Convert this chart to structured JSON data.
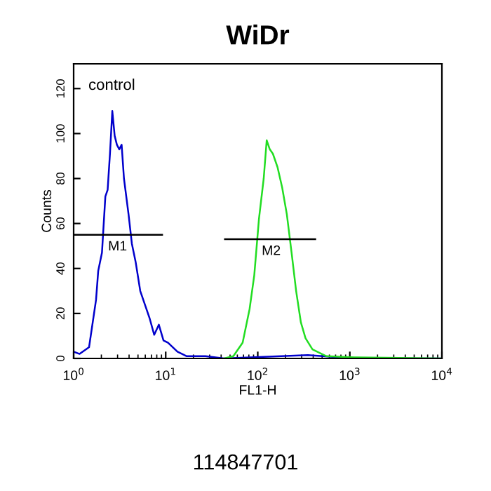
{
  "chart_data": {
    "type": "line",
    "title": "WiDr",
    "xlabel": "FL1-H",
    "ylabel": "Counts",
    "log": "x",
    "xlim": [
      1,
      10000
    ],
    "ylim": [
      0,
      131
    ],
    "xticks": [
      {
        "value": 1,
        "label": "10$^{0}$"
      },
      {
        "value": 10,
        "label": "10$^{1}$"
      },
      {
        "value": 100,
        "label": "10$^{2}$"
      },
      {
        "value": 1000,
        "label": "10$^{3}$"
      },
      {
        "value": 10000,
        "label": "10$^{4}$"
      }
    ],
    "yticks": [
      0,
      20,
      40,
      60,
      80,
      100,
      120
    ],
    "grid": false,
    "series": [
      {
        "color": "#0000cc",
        "x": [
          1,
          1.16,
          1.47,
          1.75,
          1.85,
          2.03,
          2.21,
          2.34,
          2.48,
          2.63,
          2.79,
          2.95,
          3.13,
          3.32,
          3.52,
          3.95,
          4.29,
          4.71,
          5.29,
          5.94,
          6.67,
          7.5,
          8.42,
          9.46,
          10.6,
          13.4,
          16.9,
          27,
          43,
          350,
          1120,
          10000
        ],
        "values": [
          3,
          2,
          5,
          26,
          39,
          47,
          72,
          75,
          91,
          110,
          99,
          95,
          93,
          95,
          80,
          64,
          51,
          43,
          30,
          24,
          18,
          10.5,
          15,
          8,
          7,
          3,
          1,
          1,
          0,
          1.5,
          0,
          0
        ]
      },
      {
        "color": "#22dd22",
        "x": [
          43,
          54.3,
          68.5,
          81.5,
          91.6,
          103,
          116,
          125,
          135,
          146,
          164,
          184,
          207,
          233,
          261,
          294,
          330,
          393,
          557,
          1120,
          10000
        ],
        "values": [
          0,
          1,
          7,
          22,
          37,
          62,
          80,
          97,
          93,
          91,
          85,
          76,
          64,
          47,
          30,
          16,
          9,
          4,
          1,
          0.5,
          0
        ]
      },
      {
        "color": "#000000",
        "x": [
          1.04,
          9.14
        ],
        "values": [
          55,
          55
        ]
      },
      {
        "color": "#000000",
        "x": [
          44,
          421
        ],
        "values": [
          53,
          53
        ]
      }
    ],
    "annotations": [
      "control",
      {
        "text": "M1",
        "x": 3,
        "y": 55
      },
      {
        "text": "M2",
        "x": 140,
        "y": 53
      },
      "114847701"
    ]
  }
}
